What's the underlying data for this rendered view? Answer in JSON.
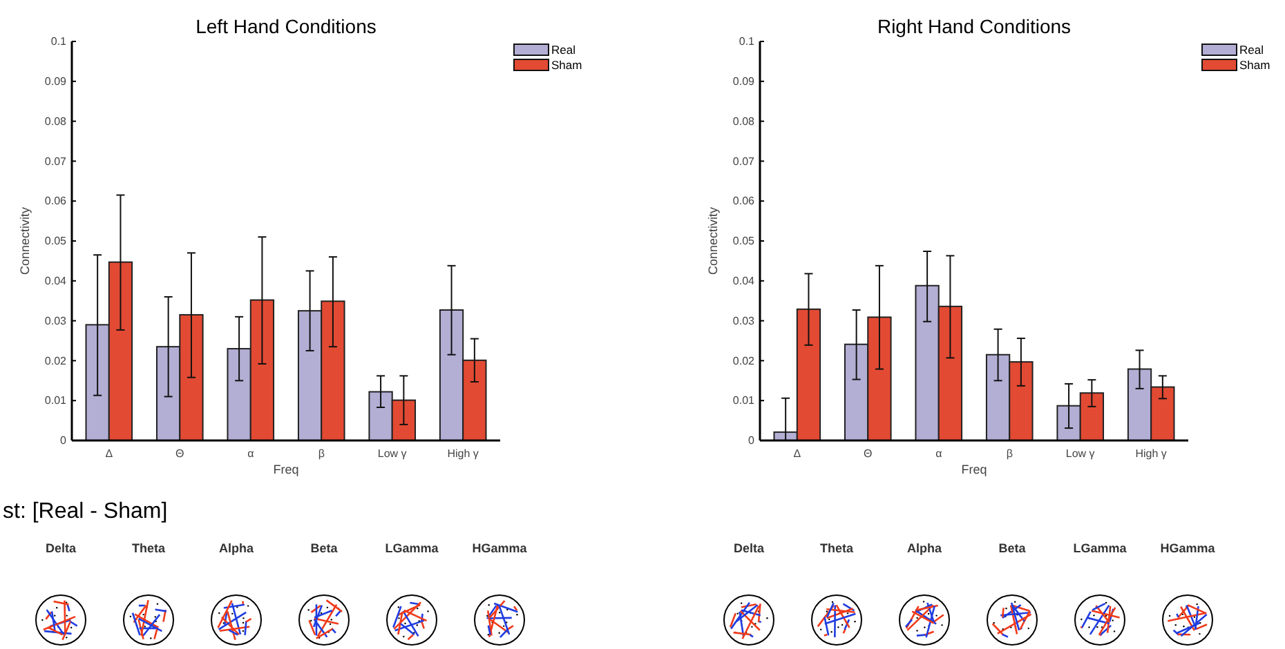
{
  "chart_data": [
    {
      "type": "bar",
      "title": "Left Hand Conditions",
      "xlabel": "Freq",
      "ylabel": "Connectivity",
      "categories": [
        "Δ",
        "Θ",
        "α",
        "β",
        "Low γ",
        "High γ"
      ],
      "series": [
        {
          "name": "Real",
          "color": "#b3aed4",
          "values": [
            0.029,
            0.0235,
            0.023,
            0.0325,
            0.0122,
            0.0327
          ],
          "errors": [
            [
              0.0113,
              0.0465
            ],
            [
              0.011,
              0.036
            ],
            [
              0.015,
              0.031
            ],
            [
              0.0225,
              0.0425
            ],
            [
              0.0083,
              0.0162
            ],
            [
              0.0215,
              0.0438
            ]
          ]
        },
        {
          "name": "Sham",
          "color": "#e34a33",
          "values": [
            0.0447,
            0.0315,
            0.0352,
            0.0349,
            0.0101,
            0.0201
          ],
          "errors": [
            [
              0.0277,
              0.0615
            ],
            [
              0.0158,
              0.047
            ],
            [
              0.0192,
              0.051
            ],
            [
              0.0235,
              0.046
            ],
            [
              0.004,
              0.0162
            ],
            [
              0.0147,
              0.0255
            ]
          ]
        }
      ],
      "ylim": [
        0,
        0.1
      ],
      "yticks": [
        0,
        0.01,
        0.02,
        0.03,
        0.04,
        0.05,
        0.06,
        0.07,
        0.08,
        0.09,
        0.1
      ],
      "grid": false,
      "legend": "top right",
      "annotations": [
        "st: [Real - Sham]",
        "Delta",
        "Theta",
        "Alpha",
        "Beta",
        "LGamma",
        "HGamma"
      ]
    },
    {
      "type": "bar",
      "title": "Right Hand Conditions",
      "xlabel": "Freq",
      "ylabel": "Connectivity",
      "categories": [
        "Δ",
        "Θ",
        "α",
        "β",
        "Low γ",
        "High γ"
      ],
      "series": [
        {
          "name": "Real",
          "color": "#b3aed4",
          "values": [
            0.0021,
            0.0241,
            0.0388,
            0.0215,
            0.0087,
            0.0179
          ],
          "errors": [
            [
              0,
              0.0106
            ],
            [
              0.0153,
              0.0327
            ],
            [
              0.0298,
              0.0474
            ],
            [
              0.015,
              0.0279
            ],
            [
              0.0031,
              0.0142
            ],
            [
              0.013,
              0.0226
            ]
          ]
        },
        {
          "name": "Sham",
          "color": "#e34a33",
          "values": [
            0.0329,
            0.0309,
            0.0336,
            0.0197,
            0.0119,
            0.0134
          ],
          "errors": [
            [
              0.0239,
              0.0418
            ],
            [
              0.0179,
              0.0438
            ],
            [
              0.0207,
              0.0463
            ],
            [
              0.0137,
              0.0256
            ],
            [
              0.0085,
              0.0152
            ],
            [
              0.0105,
              0.0162
            ]
          ]
        }
      ],
      "ylim": [
        0,
        0.1
      ],
      "yticks": [
        0,
        0.01,
        0.02,
        0.03,
        0.04,
        0.05,
        0.06,
        0.07,
        0.08,
        0.09,
        0.1
      ],
      "grid": false,
      "legend": "top right",
      "annotations": [
        "Delta",
        "Theta",
        "Alpha",
        "Beta",
        "LGamma",
        "HGamma"
      ]
    }
  ]
}
